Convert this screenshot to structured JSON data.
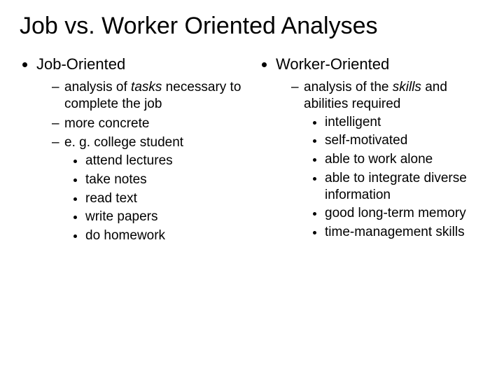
{
  "title": "Job vs. Worker Oriented Analyses",
  "left": {
    "heading": "Job-Oriented",
    "sub1_pre": "analysis of ",
    "sub1_em": "tasks",
    "sub1_post": " necessary to complete the job",
    "sub2": "more concrete",
    "sub3": "e. g. college student",
    "ex1": "attend lectures",
    "ex2": "take notes",
    "ex3": "read text",
    "ex4": "write papers",
    "ex5": "do homework"
  },
  "right": {
    "heading": "Worker-Oriented",
    "sub1_pre": "analysis of the ",
    "sub1_em": "skills",
    "sub1_post": " and abilities required",
    "ex1": "intelligent",
    "ex2": "self-motivated",
    "ex3": "able to work alone",
    "ex4": "able to integrate diverse information",
    "ex5": "good long-term memory",
    "ex6": "time-management skills"
  },
  "colors": {
    "bg": "#ffffff",
    "text": "#000000"
  },
  "fonts": {
    "title_size_pt": 26,
    "heading_size_pt": 17,
    "body_size_pt": 14
  }
}
